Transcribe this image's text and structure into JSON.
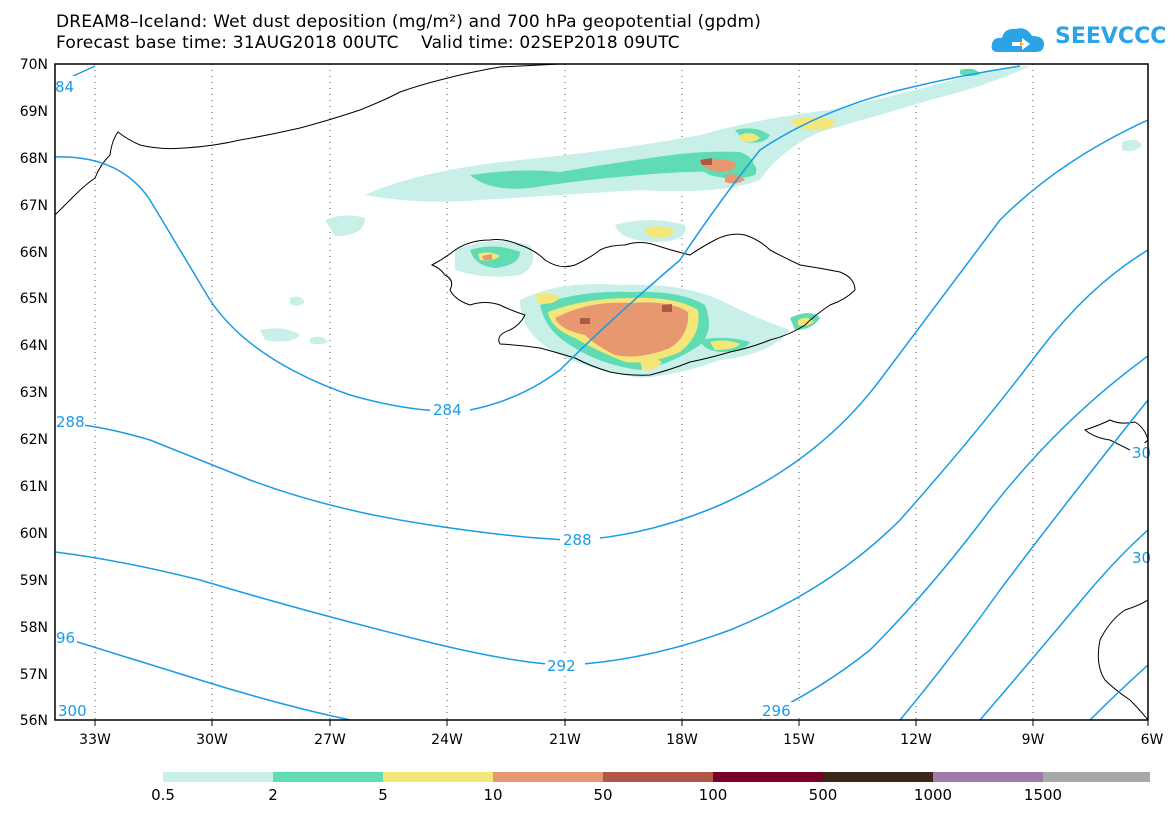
{
  "header": {
    "title_line1": "DREAM8–Iceland: Wet dust deposition (mg/m²) and 700 hPa geopotential (gpdm)",
    "title_line2": "Forecast base time: 31AUG2018 00UTC    Valid time: 02SEP2018 09UTC"
  },
  "logo": {
    "text": "SEEVCCC",
    "icon": "cloud-icon",
    "color": "#2aa4e4"
  },
  "map": {
    "lat_labels": [
      "70N",
      "69N",
      "68N",
      "67N",
      "66N",
      "65N",
      "64N",
      "63N",
      "62N",
      "61N",
      "60N",
      "59N",
      "58N",
      "57N",
      "56N"
    ],
    "lon_labels": [
      "33W",
      "30W",
      "27W",
      "24W",
      "21W",
      "18W",
      "15W",
      "12W",
      "9W",
      "6W"
    ],
    "contour_color": "#1a9be6",
    "contour_labels": [
      "84",
      "284",
      "288",
      "288",
      "292",
      "296",
      "96",
      "300",
      "30",
      "30"
    ]
  },
  "legend": {
    "colors": [
      "#c8f0e8",
      "#5fdcb4",
      "#f5e67a",
      "#e89870",
      "#b05848",
      "#780028",
      "#3c2818",
      "#a07aa8",
      "#a8a8a8"
    ],
    "labels": [
      "0.5",
      "2",
      "5",
      "10",
      "50",
      "100",
      "500",
      "1000",
      "1500"
    ]
  }
}
